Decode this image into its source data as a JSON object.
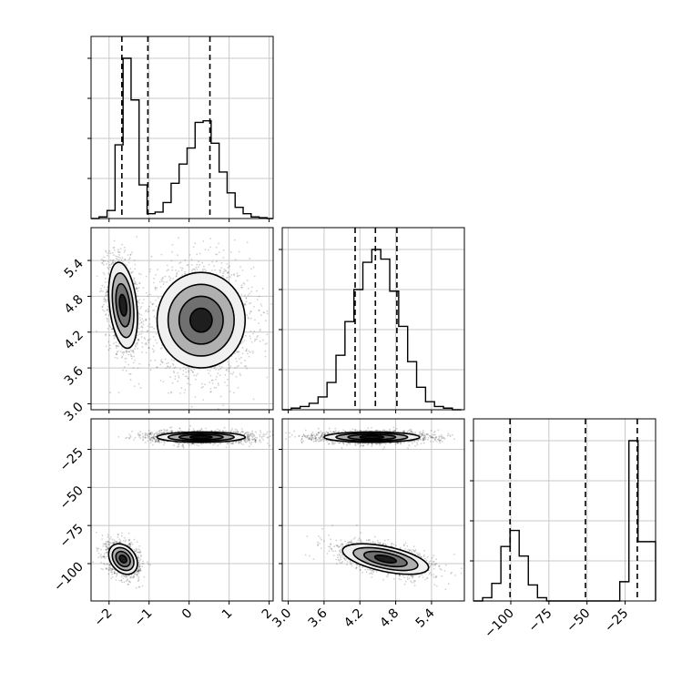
{
  "chart_data": {
    "type": "corner",
    "parameters": [
      {
        "id": "p0",
        "range": [
          -2.45,
          2.1
        ],
        "ticks": [
          -2,
          -1,
          0,
          1,
          2
        ],
        "tick_labels": [
          "−2",
          "−1",
          "0",
          "1",
          "2"
        ],
        "histogram": {
          "edges": [
            -2.45,
            -2.25,
            -2.05,
            -1.85,
            -1.65,
            -1.45,
            -1.25,
            -1.05,
            -0.85,
            -0.65,
            -0.45,
            -0.25,
            -0.05,
            0.15,
            0.35,
            0.55,
            0.75,
            0.95,
            1.15,
            1.35,
            1.55,
            1.75,
            1.95,
            2.1
          ],
          "counts": [
            0.0,
            0.01,
            0.05,
            0.46,
            1.0,
            0.74,
            0.21,
            0.03,
            0.04,
            0.1,
            0.22,
            0.34,
            0.44,
            0.6,
            0.61,
            0.47,
            0.29,
            0.16,
            0.07,
            0.03,
            0.01,
            0.005,
            0.0
          ]
        },
        "quantiles": [
          -1.68,
          -1.03,
          0.52
        ]
      },
      {
        "id": "p1",
        "range": [
          2.9,
          5.95
        ],
        "ticks": [
          3.0,
          3.6,
          4.2,
          4.8,
          5.4
        ],
        "tick_labels": [
          "3.0",
          "3.6",
          "4.2",
          "4.8",
          "5.4"
        ],
        "histogram": {
          "edges": [
            2.9,
            3.05,
            3.2,
            3.35,
            3.5,
            3.65,
            3.8,
            3.95,
            4.1,
            4.25,
            4.4,
            4.55,
            4.7,
            4.85,
            5.0,
            5.15,
            5.3,
            5.45,
            5.6,
            5.75,
            5.9
          ],
          "counts": [
            0.0,
            0.01,
            0.02,
            0.04,
            0.08,
            0.17,
            0.34,
            0.55,
            0.75,
            0.92,
            1.0,
            0.94,
            0.74,
            0.52,
            0.3,
            0.14,
            0.05,
            0.02,
            0.01,
            0.0
          ]
        },
        "quantiles": [
          4.12,
          4.46,
          4.82
        ]
      },
      {
        "id": "p2",
        "range": [
          -124.5,
          -5.0
        ],
        "ticks": [
          -100,
          -75,
          -50,
          -25
        ],
        "tick_labels": [
          "−100",
          "−75",
          "−50",
          "−25"
        ],
        "histogram": {
          "edges": [
            -124.5,
            -118.5,
            -112.5,
            -106.5,
            -100.5,
            -94.5,
            -88.5,
            -82.5,
            -76.5,
            -70.5,
            -64.5,
            -58.5,
            -52.5,
            -46.5,
            -40.5,
            -34.5,
            -28.5,
            -22.5,
            -16.5,
            -10.5,
            -5.0
          ],
          "counts": [
            0.0,
            0.02,
            0.11,
            0.34,
            0.44,
            0.28,
            0.1,
            0.02,
            0.0,
            0.0,
            0.0,
            0.0,
            0.0,
            0.0,
            0.0,
            0.0,
            0.12,
            1.0,
            0.37,
            0.37
          ]
        },
        "quantiles": [
          -100.5,
          -51.0,
          -17.0
        ]
      }
    ],
    "pairs": [
      {
        "x": "p0",
        "y": "p1",
        "clusters": [
          {
            "cx": -1.65,
            "cy": 4.65,
            "sx": 0.18,
            "sy": 0.36,
            "rho": -0.3,
            "points": 1400
          },
          {
            "cx": 0.3,
            "cy": 4.4,
            "sx": 0.55,
            "sy": 0.4,
            "rho": 0.0,
            "points": 2200
          }
        ]
      },
      {
        "x": "p0",
        "y": "p2",
        "clusters": [
          {
            "cx": -1.65,
            "cy": -97.0,
            "sx": 0.18,
            "sy": 5.0,
            "rho": -0.3,
            "points": 1400
          },
          {
            "cx": 0.3,
            "cy": -17.0,
            "sx": 0.55,
            "sy": 1.7,
            "rho": 0.0,
            "points": 2200
          }
        ]
      },
      {
        "x": "p1",
        "y": "p2",
        "clusters": [
          {
            "cx": 4.63,
            "cy": -97.0,
            "sx": 0.36,
            "sy": 5.0,
            "rho": -0.55,
            "points": 1400
          },
          {
            "cx": 4.4,
            "cy": -17.0,
            "sx": 0.4,
            "sy": 1.7,
            "rho": 0.0,
            "points": 2200
          }
        ]
      }
    ],
    "contour_levels_sigma": [
      0.5,
      1.0,
      1.5,
      2.0
    ],
    "grid": true,
    "colors": {
      "points": "#000000",
      "contour": "#000000",
      "grid": "#c8c8c8"
    }
  }
}
